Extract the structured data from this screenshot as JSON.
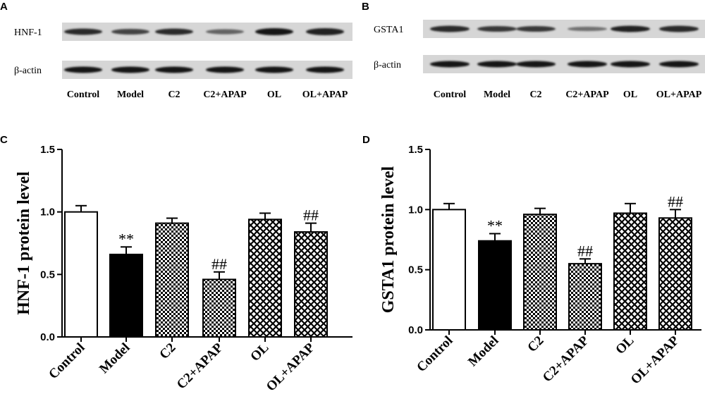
{
  "panels": {
    "A": {
      "letter": "A",
      "rows": [
        {
          "label": "HNF-1",
          "intensity": [
            0.85,
            0.75,
            0.85,
            0.6,
            0.95,
            0.9
          ],
          "thickness": [
            1.0,
            0.9,
            1.0,
            0.8,
            1.1,
            1.1
          ]
        },
        {
          "label": "β-actin",
          "intensity": [
            0.95,
            0.95,
            0.95,
            0.95,
            0.95,
            0.95
          ],
          "thickness": [
            1.0,
            1.0,
            1.0,
            1.0,
            1.0,
            1.0
          ]
        }
      ],
      "lanes": [
        "Control",
        "Model",
        "C2",
        "C2+APAP",
        "OL",
        "OL+APAP"
      ]
    },
    "B": {
      "letter": "B",
      "rows": [
        {
          "label": "GSTA1",
          "intensity": [
            0.85,
            0.8,
            0.8,
            0.55,
            0.9,
            0.85
          ],
          "thickness": [
            1.0,
            0.9,
            0.9,
            0.7,
            1.0,
            1.0
          ]
        },
        {
          "label": "β-actin",
          "intensity": [
            0.95,
            0.95,
            0.95,
            0.95,
            0.95,
            0.95
          ],
          "thickness": [
            1.0,
            1.0,
            1.0,
            1.0,
            1.0,
            1.0
          ]
        }
      ],
      "lanes": [
        "Control",
        "Model",
        "C2",
        "C2+APAP",
        "OL",
        "OL+APAP"
      ]
    }
  },
  "chart_data": [
    {
      "panel": "C",
      "type": "bar",
      "categories": [
        "Control",
        "Model",
        "C2",
        "C2+APAP",
        "OL",
        "OL+APAP"
      ],
      "values": [
        1.0,
        0.66,
        0.91,
        0.46,
        0.94,
        0.84
      ],
      "errors": [
        0.05,
        0.06,
        0.04,
        0.06,
        0.05,
        0.07
      ],
      "fills": [
        "white",
        "black",
        "checker-fine",
        "checker-fine",
        "crosshatch",
        "crosshatch"
      ],
      "annotations": [
        "",
        "**",
        "",
        "##",
        "",
        "##"
      ],
      "title": "",
      "xlabel": "",
      "ylabel": "HNF-1 protein level",
      "ylim": [
        0.0,
        1.5
      ],
      "yticks": [
        "0.0",
        "0.5",
        "1.0",
        "1.5"
      ],
      "grid": false
    },
    {
      "panel": "D",
      "type": "bar",
      "categories": [
        "Control",
        "Model",
        "C2",
        "C2+APAP",
        "OL",
        "OL+APAP"
      ],
      "values": [
        1.0,
        0.74,
        0.96,
        0.55,
        0.97,
        0.93
      ],
      "errors": [
        0.05,
        0.06,
        0.05,
        0.04,
        0.08,
        0.07
      ],
      "fills": [
        "white",
        "black",
        "checker-fine",
        "checker-fine",
        "crosshatch",
        "crosshatch"
      ],
      "annotations": [
        "",
        "**",
        "",
        "##",
        "",
        "##"
      ],
      "title": "",
      "xlabel": "",
      "ylabel": "GSTA1 protein level",
      "ylim": [
        0.0,
        1.5
      ],
      "yticks": [
        "0.0",
        "0.5",
        "1.0",
        "1.5"
      ],
      "grid": false
    }
  ],
  "panel_letters": {
    "C": "C",
    "D": "D"
  }
}
